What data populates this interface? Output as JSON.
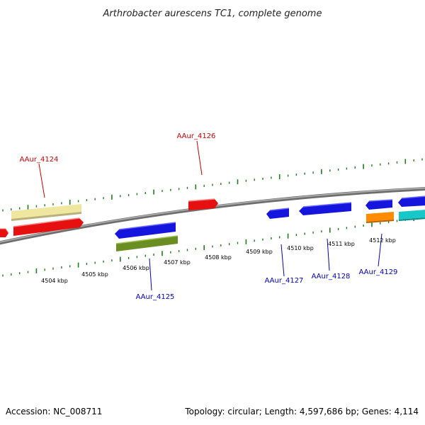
{
  "title": "Arthrobacter aurescens TC1, complete genome",
  "footer": {
    "accession": "Accession: NC_008711",
    "topology": "Topology: circular; Length: 4,597,686 bp; Genes: 4,114"
  },
  "colors": {
    "backbone": "#8c8c8c",
    "tick": "#1e7d1e",
    "label_top": "#cc0000",
    "label_bottom": "#0000bb"
  },
  "scale_labels": [
    "4504 kbp",
    "4505 kbp",
    "4506 kbp",
    "4507 kbp",
    "4508 kbp",
    "4509 kbp",
    "4510 kbp",
    "4511 kbp",
    "4512 kbp"
  ],
  "gene_labels": [
    {
      "text": "AAur_4124",
      "color": "#cc0000"
    },
    {
      "text": "AAur_4126",
      "color": "#cc0000"
    },
    {
      "text": "AAur_4125",
      "color": "#0000bb"
    },
    {
      "text": "AAur_4127",
      "color": "#0000bb"
    },
    {
      "text": "AAur_4128",
      "color": "#0000bb"
    },
    {
      "text": "AAur_4129",
      "color": "#0000bb"
    }
  ],
  "features": [
    {
      "name": "feature-red-a",
      "color": "#e61010",
      "strand": "+"
    },
    {
      "name": "feature-yellow",
      "color": "#efe6a0",
      "strand": "+"
    },
    {
      "name": "feature-red-b",
      "color": "#e61010",
      "strand": "+"
    },
    {
      "name": "feature-red-c",
      "color": "#e61010",
      "strand": "+"
    },
    {
      "name": "feature-blue-a",
      "color": "#1515dd",
      "strand": "-"
    },
    {
      "name": "feature-olive",
      "color": "#6b8e23",
      "strand": "-"
    },
    {
      "name": "feature-blue-b",
      "color": "#1515dd",
      "strand": "-"
    },
    {
      "name": "feature-blue-c",
      "color": "#1515dd",
      "strand": "-"
    },
    {
      "name": "feature-blue-d",
      "color": "#1515dd",
      "strand": "-"
    },
    {
      "name": "feature-blue-e",
      "color": "#1515dd",
      "strand": "-"
    },
    {
      "name": "feature-orange",
      "color": "#ff8c00",
      "strand": "-"
    },
    {
      "name": "feature-cyan",
      "color": "#18c8c8",
      "strand": "-"
    }
  ]
}
